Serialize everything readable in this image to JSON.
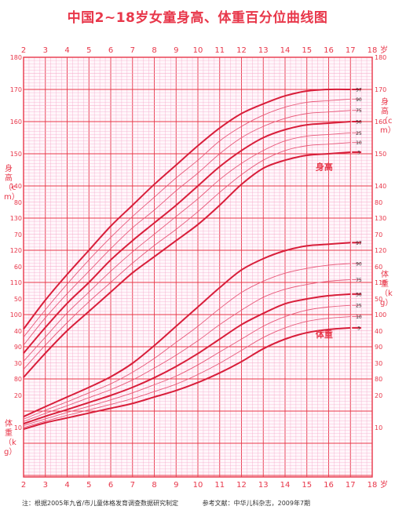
{
  "title": "中国2~18岁女童身高、体重百分位曲线图",
  "footer": {
    "note": "注：根据2005年九省/市儿童体格发育调查数据研究制定",
    "reference": "参考文献：中华儿科杂志，2009年7期"
  },
  "axis_labels": {
    "height_left": "身高（cm）",
    "height_right": "身高（cm）",
    "weight_left": "体重（kg）",
    "weight_right": "体重（kg）",
    "age_unit": "岁"
  },
  "curve_labels": {
    "height": "身高",
    "weight": "体重"
  },
  "colors": {
    "grid_major": "#e8374a",
    "grid_minor": "#f5a6c8",
    "curve_main": "#d81e3a",
    "curve_thin": "#e85a7a",
    "text": "#e8374a"
  },
  "chart_data": {
    "type": "line",
    "title": "中国2~18岁女童身高、体重百分位曲线图",
    "x_label": "岁",
    "x_ticks": [
      2,
      3,
      4,
      5,
      6,
      7,
      8,
      9,
      10,
      11,
      12,
      13,
      14,
      15,
      16,
      17,
      18
    ],
    "xlim": [
      2,
      18
    ],
    "height_axis": {
      "label": "身高（cm）",
      "ylim": [
        80,
        180
      ],
      "ticks": [
        80,
        90,
        100,
        110,
        120,
        130,
        140,
        150,
        160,
        170,
        180
      ]
    },
    "weight_axis": {
      "label": "体重（kg）",
      "ylim": [
        0,
        80
      ],
      "ticks": [
        10,
        20,
        30,
        40,
        50,
        60,
        70,
        80
      ]
    },
    "x": [
      2,
      3,
      4,
      5,
      6,
      7,
      8,
      9,
      10,
      11,
      12,
      13,
      14,
      15,
      16,
      17
    ],
    "height_series": [
      {
        "name": "3",
        "values": [
          80.5,
          88,
          95,
          101,
          107,
          113,
          118,
          123,
          128,
          134,
          140.5,
          145.5,
          148,
          149.5,
          150,
          150.5
        ]
      },
      {
        "name": "10",
        "values": [
          83,
          90.5,
          97.5,
          104,
          110,
          116,
          121.5,
          126.5,
          132,
          138,
          143.5,
          148,
          151,
          152.5,
          153,
          153.5
        ]
      },
      {
        "name": "25",
        "values": [
          85.5,
          93,
          100.5,
          107,
          113.5,
          119.5,
          125,
          130.5,
          136,
          142,
          147,
          151,
          154,
          155.5,
          156,
          156.5
        ]
      },
      {
        "name": "50",
        "values": [
          88,
          96,
          103.5,
          110,
          117,
          123,
          128.5,
          134,
          140,
          146,
          151,
          155,
          157.5,
          159,
          159.5,
          160
        ]
      },
      {
        "name": "75",
        "values": [
          90.5,
          99,
          106.5,
          113.5,
          120.5,
          127,
          132.5,
          138.5,
          144,
          150,
          155,
          158.5,
          161,
          162.5,
          163,
          163.5
        ]
      },
      {
        "name": "90",
        "values": [
          93,
          101.5,
          109.5,
          117,
          124,
          130.5,
          136.5,
          142.5,
          148,
          154,
          158.5,
          162,
          164.5,
          166,
          166.5,
          167
        ]
      },
      {
        "name": "97",
        "values": [
          95.5,
          104.5,
          112.5,
          120,
          127.5,
          134,
          140.5,
          146.5,
          152.5,
          158,
          162.5,
          165.5,
          168,
          169.5,
          170,
          170
        ]
      }
    ],
    "weight_series": [
      {
        "name": "3",
        "values": [
          9.5,
          11.5,
          13,
          14.5,
          16,
          17.5,
          19.5,
          21.5,
          24,
          27,
          30.5,
          34.5,
          37.5,
          39.5,
          40.5,
          41
        ]
      },
      {
        "name": "10",
        "values": [
          10,
          12,
          13.8,
          15.5,
          17.2,
          19,
          21.2,
          23.5,
          26.5,
          30,
          34,
          38,
          41,
          43,
          44,
          44.5
        ]
      },
      {
        "name": "25",
        "values": [
          10.6,
          12.7,
          14.7,
          16.6,
          18.6,
          20.8,
          23.3,
          26,
          29.5,
          33.5,
          37.5,
          41.5,
          44.5,
          46.5,
          47.5,
          48
        ]
      },
      {
        "name": "50",
        "values": [
          11.2,
          13.5,
          15.6,
          17.8,
          20,
          22.5,
          25.5,
          29,
          33,
          37.5,
          42,
          45.5,
          48.5,
          50,
          51,
          51.5
        ]
      },
      {
        "name": "75",
        "values": [
          11.9,
          14.4,
          16.8,
          19.3,
          21.8,
          24.8,
          28.5,
          32.5,
          37,
          42,
          46.5,
          50.5,
          53,
          54.5,
          55.5,
          56
        ]
      },
      {
        "name": "90",
        "values": [
          12.6,
          15.4,
          18,
          20.8,
          23.6,
          27.2,
          31.5,
          36.5,
          41.5,
          47,
          52,
          55.5,
          58,
          59.5,
          60.5,
          61
        ]
      },
      {
        "name": "97",
        "values": [
          13.4,
          16.5,
          19.5,
          22.5,
          25.8,
          30,
          35.5,
          41.5,
          47.5,
          53.5,
          59,
          62.5,
          65,
          66.5,
          67,
          67.5
        ]
      }
    ]
  }
}
